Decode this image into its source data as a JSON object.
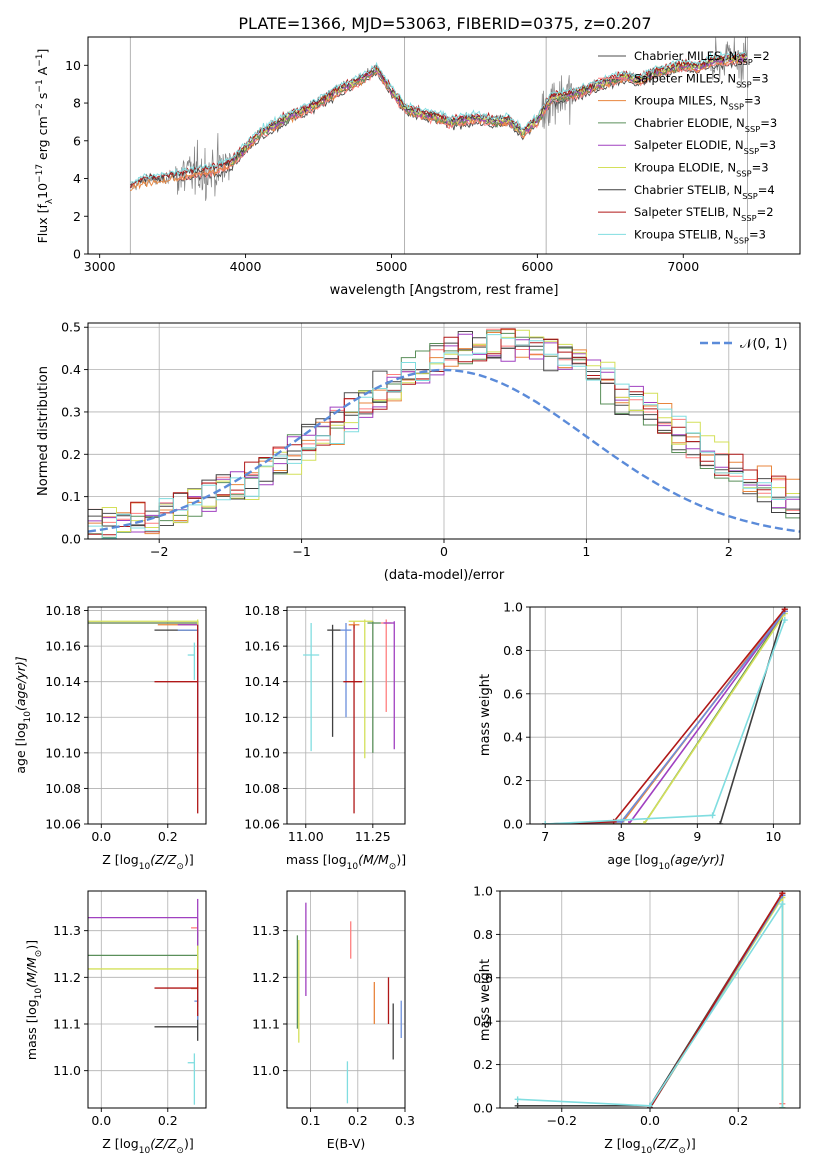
{
  "figure": {
    "title": "PLATE=1366, MJD=53063, FIBERID=0375, z=0.207"
  },
  "series_styles": [
    {
      "name": "Chabrier MILES, N_SSP=2",
      "label_main": "Chabrier MILES, N",
      "label_sub": "SSP",
      "label_end": "=2",
      "color": "#4d4d4d"
    },
    {
      "name": "Salpeter MILES, N_SSP=3",
      "label_main": "Salpeter MILES, N",
      "label_sub": "SSP",
      "label_end": "=3",
      "color": "#ff7f7f"
    },
    {
      "name": "Kroupa MILES, N_SSP=3",
      "label_main": "Kroupa MILES, N",
      "label_sub": "SSP",
      "label_end": "=3",
      "color": "#e8853d"
    },
    {
      "name": "Chabrier ELODIE, N_SSP=3",
      "label_main": "Chabrier ELODIE, N",
      "label_sub": "SSP",
      "label_end": "=3",
      "color": "#5a8f5a"
    },
    {
      "name": "Salpeter ELODIE, N_SSP=3",
      "label_main": "Salpeter ELODIE, N",
      "label_sub": "SSP",
      "label_end": "=3",
      "color": "#a040c0"
    },
    {
      "name": "Kroupa ELODIE, N_SSP=3",
      "label_main": "Kroupa ELODIE, N",
      "label_sub": "SSP",
      "label_end": "=3",
      "color": "#d4e05a"
    },
    {
      "name": "Chabrier STELIB, N_SSP=4",
      "label_main": "Chabrier STELIB, N",
      "label_sub": "SSP",
      "label_end": "=4",
      "color": "#404040"
    },
    {
      "name": "Salpeter STELIB, N_SSP=2",
      "label_main": "Salpeter STELIB, N",
      "label_sub": "SSP",
      "label_end": "=2",
      "color": "#b01818"
    },
    {
      "name": "Kroupa STELIB, N_SSP=3",
      "label_main": "Kroupa STELIB, N",
      "label_sub": "SSP",
      "label_end": "=3",
      "color": "#80dde0"
    }
  ],
  "chart_data": [
    {
      "id": "spectrum",
      "type": "line",
      "xlabel": "wavelength [Angstrom, rest frame]",
      "ylabel_main": "Flux [f",
      "ylabel_rest": "10",
      "ylabel_exp": "−17",
      "ylabel_units": " erg cm",
      "ylabel_units_exp": "−2",
      "ylabel_units2": " s",
      "ylabel_units2_exp": "−1",
      "ylabel_units3": " A",
      "ylabel_units3_exp": "−1",
      "ylabel_close": "]",
      "xlim": [
        2920,
        7800
      ],
      "ylim": [
        0,
        11.5
      ],
      "xticks": [
        3000,
        4000,
        5000,
        6000,
        7000
      ],
      "yticks": [
        0,
        2,
        4,
        6,
        8,
        10
      ],
      "data_color": "#808080",
      "data_anchor_wavelength": [
        3210,
        3300,
        3400,
        3500,
        3600,
        3700,
        3800,
        3900,
        4000,
        4100,
        4200,
        4300,
        4400,
        4500,
        4600,
        4700,
        4800,
        4900,
        5000,
        5100,
        5200,
        5300,
        5400,
        5500,
        5600,
        5700,
        5800,
        5900,
        6000,
        6100,
        6200,
        6300,
        6400,
        6500,
        6600,
        6700,
        6800,
        6900,
        7000,
        7100,
        7200,
        7300,
        7400
      ],
      "model_anchor_flux": [
        3.5,
        3.9,
        3.9,
        4.1,
        4.2,
        4.4,
        4.5,
        4.8,
        5.6,
        6.4,
        6.8,
        7.3,
        7.6,
        8.0,
        8.5,
        8.9,
        9.3,
        9.8,
        8.6,
        7.7,
        7.4,
        7.3,
        7.0,
        7.1,
        7.2,
        7.0,
        7.1,
        6.4,
        7.1,
        8.3,
        8.4,
        8.6,
        8.9,
        9.2,
        9.4,
        9.2,
        9.6,
        9.8,
        10.0,
        9.9,
        10.2,
        10.3,
        10.4
      ]
    },
    {
      "id": "residuals",
      "type": "histogram",
      "xlabel": "(data-model)/error",
      "ylabel": "Normed distribution",
      "xlim": [
        -2.5,
        2.5
      ],
      "ylim": [
        0,
        0.51
      ],
      "xticks": [
        -2,
        -1,
        0,
        1,
        2
      ],
      "yticks": [
        0.0,
        0.1,
        0.2,
        0.3,
        0.4,
        0.5
      ],
      "normal_label": "𝒩(0, 1)",
      "normal_color": "#5b8bd9"
    },
    {
      "id": "age_vs_Z",
      "type": "errorbar",
      "xlabel": "Z [log",
      "xlabel_sub": "10",
      "xlabel_rest": "(Z/Z",
      "xlabel_sun": "⊙",
      "xlabel_close": ")]",
      "ylabel": "age  [log",
      "ylabel_sub": "10",
      "ylabel_rest": "(age/yr)]",
      "xlim": [
        -0.04,
        0.315
      ],
      "ylim": [
        10.06,
        10.182
      ],
      "xticks": [
        0.0,
        0.2
      ],
      "yticks": [
        10.06,
        10.08,
        10.1,
        10.12,
        10.14,
        10.16,
        10.18
      ],
      "points": [
        {
          "x": 0.29,
          "y": 10.169,
          "xerr_lo": 0.13,
          "xerr_hi": 0.0,
          "yerr_lo": 0.002,
          "yerr_hi": 0.005,
          "color": "#404040"
        },
        {
          "x": 0.29,
          "y": 10.173,
          "xerr_lo": 0.34,
          "xerr_hi": 0.0,
          "yerr_lo": 0.003,
          "yerr_hi": 0.001,
          "color": "#ff7f7f"
        },
        {
          "x": 0.29,
          "y": 10.172,
          "xerr_lo": 0.12,
          "xerr_hi": 0.0,
          "yerr_lo": 0.008,
          "yerr_hi": 0.002,
          "color": "#e8853d"
        },
        {
          "x": 0.29,
          "y": 10.173,
          "xerr_lo": 0.34,
          "xerr_hi": 0.0,
          "yerr_lo": 0.073,
          "yerr_hi": 0.001,
          "color": "#5a8f5a"
        },
        {
          "x": 0.29,
          "y": 10.172,
          "xerr_lo": 0.06,
          "xerr_hi": 0.0,
          "yerr_lo": 0.071,
          "yerr_hi": 0.001,
          "color": "#a040c0"
        },
        {
          "x": 0.29,
          "y": 10.174,
          "xerr_lo": 0.34,
          "xerr_hi": 0.0,
          "yerr_lo": 0.002,
          "yerr_hi": 0.001,
          "color": "#d4e05a"
        },
        {
          "x": 0.29,
          "y": 10.169,
          "xerr_lo": 0.06,
          "xerr_hi": 0.0,
          "yerr_lo": 0.01,
          "yerr_hi": 0.003,
          "color": "#6b8fdc"
        },
        {
          "x": 0.29,
          "y": 10.14,
          "xerr_lo": 0.13,
          "xerr_hi": 0.0,
          "yerr_lo": 0.074,
          "yerr_hi": 0.032,
          "color": "#b01818"
        },
        {
          "x": 0.28,
          "y": 10.155,
          "xerr_lo": 0.02,
          "xerr_hi": 0.0,
          "yerr_lo": 0.014,
          "yerr_hi": 0.007,
          "color": "#80dde0"
        }
      ]
    },
    {
      "id": "age_vs_mass",
      "type": "errorbar",
      "xlabel": "mass [log",
      "xlabel_sub": "10",
      "xlabel_rest": "(M/M",
      "xlabel_sun": "⊙",
      "xlabel_close": ")]",
      "xlim": [
        10.93,
        11.37
      ],
      "ylim": [
        10.06,
        10.182
      ],
      "xticks": [
        11.0,
        11.25
      ],
      "yticks": [
        10.06,
        10.08,
        10.1,
        10.12,
        10.14,
        10.16,
        10.18
      ],
      "points": [
        {
          "x": 11.1,
          "y": 10.169,
          "xerr_lo": 0.02,
          "xerr_hi": 0.03,
          "yerr_lo": 0.06,
          "yerr_hi": 0.003,
          "color": "#404040"
        },
        {
          "x": 11.3,
          "y": 10.173,
          "xerr_lo": 0.02,
          "xerr_hi": 0.02,
          "yerr_lo": 0.05,
          "yerr_hi": 0.002,
          "color": "#ff7f7f"
        },
        {
          "x": 11.18,
          "y": 10.172,
          "xerr_lo": 0.02,
          "xerr_hi": 0.02,
          "yerr_lo": 0.002,
          "yerr_hi": 0.002,
          "color": "#e8853d"
        },
        {
          "x": 11.25,
          "y": 10.173,
          "xerr_lo": 0.02,
          "xerr_hi": 0.03,
          "yerr_lo": 0.073,
          "yerr_hi": 0.001,
          "color": "#5a8f5a"
        },
        {
          "x": 11.33,
          "y": 10.173,
          "xerr_lo": 0.04,
          "xerr_hi": 0.0,
          "yerr_lo": 0.071,
          "yerr_hi": 0.001,
          "color": "#a040c0"
        },
        {
          "x": 11.22,
          "y": 10.174,
          "xerr_lo": 0.06,
          "xerr_hi": 0.03,
          "yerr_lo": 0.077,
          "yerr_hi": 0.001,
          "color": "#d4e05a"
        },
        {
          "x": 11.15,
          "y": 10.169,
          "xerr_lo": 0.02,
          "xerr_hi": 0.02,
          "yerr_lo": 0.049,
          "yerr_hi": 0.004,
          "color": "#6b8fdc"
        },
        {
          "x": 11.18,
          "y": 10.14,
          "xerr_lo": 0.04,
          "xerr_hi": 0.03,
          "yerr_lo": 0.074,
          "yerr_hi": 0.032,
          "color": "#b01818"
        },
        {
          "x": 11.02,
          "y": 10.155,
          "xerr_lo": 0.03,
          "xerr_hi": 0.03,
          "yerr_lo": 0.054,
          "yerr_hi": 0.018,
          "color": "#80dde0"
        }
      ]
    },
    {
      "id": "mass_weight_vs_age",
      "type": "line",
      "xlabel": "age  [log",
      "xlabel_sub": "10",
      "xlabel_rest": "(age/yr)]",
      "ylabel": "mass weight",
      "xlim": [
        6.8,
        10.35
      ],
      "ylim": [
        0,
        1.0
      ],
      "xticks": [
        7,
        8,
        9,
        10
      ],
      "yticks": [
        0.0,
        0.2,
        0.4,
        0.6,
        0.8,
        1.0
      ],
      "series": [
        {
          "color": "#404040",
          "x": [
            7.0,
            9.3,
            10.15
          ],
          "y": [
            0.0,
            0.0,
            0.99
          ]
        },
        {
          "color": "#ff7f7f",
          "x": [
            7.0,
            8.0,
            10.15
          ],
          "y": [
            0.0,
            0.01,
            0.98
          ]
        },
        {
          "color": "#e8853d",
          "x": [
            7.0,
            8.0,
            10.15
          ],
          "y": [
            0.0,
            0.0,
            0.99
          ]
        },
        {
          "color": "#5a8f5a",
          "x": [
            7.0,
            8.3,
            10.15
          ],
          "y": [
            0.0,
            0.0,
            0.98
          ]
        },
        {
          "color": "#a040c0",
          "x": [
            7.0,
            8.1,
            10.15
          ],
          "y": [
            0.0,
            0.0,
            0.98
          ]
        },
        {
          "color": "#d4e05a",
          "x": [
            7.0,
            8.3,
            10.15
          ],
          "y": [
            0.0,
            0.0,
            0.97
          ]
        },
        {
          "color": "#6b8fdc",
          "x": [
            7.0,
            8.0,
            10.15
          ],
          "y": [
            0.0,
            0.01,
            0.98
          ]
        },
        {
          "color": "#b01818",
          "x": [
            7.0,
            7.9,
            10.15
          ],
          "y": [
            0.0,
            0.01,
            0.99
          ]
        },
        {
          "color": "#80dde0",
          "x": [
            7.0,
            9.2,
            10.15
          ],
          "y": [
            0.0,
            0.04,
            0.94
          ]
        }
      ]
    },
    {
      "id": "mass_vs_Z",
      "type": "errorbar",
      "xlabel": "Z [log",
      "xlabel_sub": "10",
      "xlabel_rest": "(Z/Z",
      "xlabel_sun": "⊙",
      "xlabel_close": ")]",
      "ylabel": "mass [log",
      "ylabel_sub": "10",
      "ylabel_rest": "(M/M",
      "ylabel_sun": "⊙",
      "ylabel_close": ")]",
      "xlim": [
        -0.04,
        0.315
      ],
      "ylim": [
        10.92,
        11.385
      ],
      "xticks": [
        0.0,
        0.2
      ],
      "yticks": [
        11.0,
        11.1,
        11.2,
        11.3
      ],
      "points": [
        {
          "x": 0.29,
          "y": 11.094,
          "xerr_lo": 0.13,
          "xerr_hi": 0.0,
          "yerr_lo": 0.03,
          "yerr_hi": 0.03,
          "color": "#404040"
        },
        {
          "x": 0.29,
          "y": 11.306,
          "xerr_lo": 0.02,
          "xerr_hi": 0.0,
          "yerr_lo": 0.02,
          "yerr_hi": 0.02,
          "color": "#ff7f7f"
        },
        {
          "x": 0.29,
          "y": 11.176,
          "xerr_lo": 0.02,
          "xerr_hi": 0.0,
          "yerr_lo": 0.04,
          "yerr_hi": 0.02,
          "color": "#e8853d"
        },
        {
          "x": 0.29,
          "y": 11.247,
          "xerr_lo": 0.34,
          "xerr_hi": 0.0,
          "yerr_lo": 0.1,
          "yerr_hi": 0.05,
          "color": "#5a8f5a"
        },
        {
          "x": 0.29,
          "y": 11.328,
          "xerr_lo": 0.34,
          "xerr_hi": 0.0,
          "yerr_lo": 0.06,
          "yerr_hi": 0.04,
          "color": "#a040c0"
        },
        {
          "x": 0.29,
          "y": 11.218,
          "xerr_lo": 0.34,
          "xerr_hi": 0.0,
          "yerr_lo": 0.06,
          "yerr_hi": 0.05,
          "color": "#d4e05a"
        },
        {
          "x": 0.29,
          "y": 11.149,
          "xerr_lo": 0.01,
          "xerr_hi": 0.0,
          "yerr_lo": 0.04,
          "yerr_hi": 0.03,
          "color": "#6b8fdc"
        },
        {
          "x": 0.29,
          "y": 11.177,
          "xerr_lo": 0.13,
          "xerr_hi": 0.0,
          "yerr_lo": 0.06,
          "yerr_hi": 0.04,
          "color": "#b01818"
        },
        {
          "x": 0.28,
          "y": 11.017,
          "xerr_lo": 0.02,
          "xerr_hi": 0.0,
          "yerr_lo": 0.09,
          "yerr_hi": 0.02,
          "color": "#80dde0"
        }
      ]
    },
    {
      "id": "mass_vs_ebv",
      "type": "errorbar",
      "xlabel": "E(B-V)",
      "xlim": [
        0.05,
        0.3
      ],
      "ylim": [
        10.92,
        11.385
      ],
      "xticks": [
        0.1,
        0.2,
        0.3
      ],
      "yticks": [
        11.0,
        11.1,
        11.2,
        11.3
      ],
      "points": [
        {
          "x": 0.275,
          "y": 11.094,
          "xerr_lo": 0.0,
          "xerr_hi": 0.0,
          "yerr_lo": 0.07,
          "yerr_hi": 0.05,
          "color": "#404040"
        },
        {
          "x": 0.185,
          "y": 11.28,
          "xerr_lo": 0.0,
          "xerr_hi": 0.0,
          "yerr_lo": 0.04,
          "yerr_hi": 0.04,
          "color": "#ff7f7f"
        },
        {
          "x": 0.235,
          "y": 11.14,
          "xerr_lo": 0.0,
          "xerr_hi": 0.0,
          "yerr_lo": 0.04,
          "yerr_hi": 0.05,
          "color": "#e8853d"
        },
        {
          "x": 0.072,
          "y": 11.22,
          "xerr_lo": 0.0,
          "xerr_hi": 0.0,
          "yerr_lo": 0.13,
          "yerr_hi": 0.07,
          "color": "#5a8f5a"
        },
        {
          "x": 0.09,
          "y": 11.26,
          "xerr_lo": 0.0,
          "xerr_hi": 0.0,
          "yerr_lo": 0.1,
          "yerr_hi": 0.1,
          "color": "#a040c0"
        },
        {
          "x": 0.075,
          "y": 11.18,
          "xerr_lo": 0.0,
          "xerr_hi": 0.0,
          "yerr_lo": 0.12,
          "yerr_hi": 0.1,
          "color": "#d4e05a"
        },
        {
          "x": 0.292,
          "y": 11.11,
          "xerr_lo": 0.0,
          "xerr_hi": 0.0,
          "yerr_lo": 0.04,
          "yerr_hi": 0.04,
          "color": "#6b8fdc"
        },
        {
          "x": 0.265,
          "y": 11.15,
          "xerr_lo": 0.0,
          "xerr_hi": 0.0,
          "yerr_lo": 0.05,
          "yerr_hi": 0.05,
          "color": "#b01818"
        },
        {
          "x": 0.178,
          "y": 10.97,
          "xerr_lo": 0.0,
          "xerr_hi": 0.0,
          "yerr_lo": 0.04,
          "yerr_hi": 0.05,
          "color": "#80dde0"
        }
      ]
    },
    {
      "id": "mass_weight_vs_Z",
      "type": "line",
      "xlabel": "Z [log",
      "xlabel_sub": "10",
      "xlabel_rest": "(Z/Z",
      "xlabel_sun": "⊙",
      "xlabel_close": ")]",
      "ylabel": "mass weight",
      "xlim": [
        -0.34,
        0.34
      ],
      "ylim": [
        0,
        1.0
      ],
      "xticks": [
        -0.2,
        0.0,
        0.2
      ],
      "yticks": [
        0.0,
        0.2,
        0.4,
        0.6,
        0.8,
        1.0
      ],
      "series": [
        {
          "color": "#404040",
          "x": [
            -0.3,
            0.0,
            0.3
          ],
          "y": [
            0.01,
            0.01,
            0.99
          ]
        },
        {
          "color": "#ff7f7f",
          "x": [
            0.0,
            0.3,
            0.3
          ],
          "y": [
            0.0,
            0.98,
            0.02
          ]
        },
        {
          "color": "#e8853d",
          "x": [
            0.0,
            0.3
          ],
          "y": [
            0.0,
            0.99
          ]
        },
        {
          "color": "#5a8f5a",
          "x": [
            0.0,
            0.3,
            0.3
          ],
          "y": [
            0.0,
            0.98,
            0.0
          ]
        },
        {
          "color": "#a040c0",
          "x": [
            0.0,
            0.3
          ],
          "y": [
            0.0,
            0.98
          ]
        },
        {
          "color": "#d4e05a",
          "x": [
            0.0,
            0.3,
            0.3
          ],
          "y": [
            0.0,
            0.97,
            0.0
          ]
        },
        {
          "color": "#6b8fdc",
          "x": [
            0.0,
            0.3
          ],
          "y": [
            0.0,
            0.98
          ]
        },
        {
          "color": "#b01818",
          "x": [
            0.0,
            0.3
          ],
          "y": [
            0.0,
            0.99
          ]
        },
        {
          "color": "#80dde0",
          "x": [
            -0.3,
            0.0,
            0.3,
            0.3
          ],
          "y": [
            0.04,
            0.01,
            0.94,
            0.0
          ]
        }
      ]
    }
  ]
}
